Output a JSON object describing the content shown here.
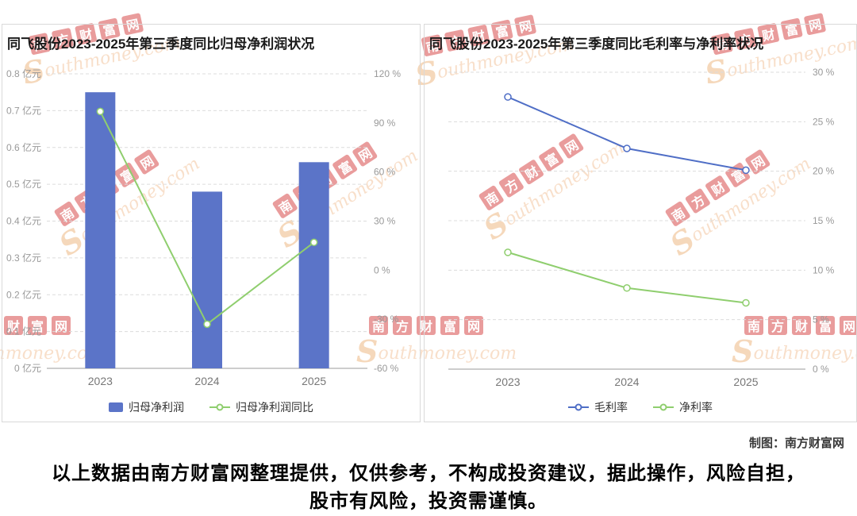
{
  "watermark": {
    "stamp": "南方财富网",
    "script": "Southmoney.com"
  },
  "credit": "制图：南方财富网",
  "disclaimer": "以上数据由南方财富网整理提供，仅供参考，不构成投资建议，据此操作，风险自担，股市有风险，投资需谨慎。",
  "chart_data": [
    {
      "type": "bar",
      "title": "同飞股份2023-2025年第三季度同比归母净利润状况",
      "categories": [
        "2023",
        "2024",
        "2025"
      ],
      "series": [
        {
          "name": "归母净利润",
          "type": "bar",
          "axis": "left",
          "unit": "亿元",
          "values": [
            0.75,
            0.48,
            0.56
          ],
          "color": "#5b74c8"
        },
        {
          "name": "归母净利润同比",
          "type": "line",
          "axis": "right",
          "unit": "%",
          "values": [
            97,
            -33,
            17
          ],
          "color": "#8fce6e"
        }
      ],
      "left_axis": {
        "min": 0,
        "max": 0.8,
        "unit": "亿元",
        "ticks": [
          "0 亿元",
          "0.1 亿元",
          "0.2 亿元",
          "0.3 亿元",
          "0.4 亿元",
          "0.5 亿元",
          "0.6 亿元",
          "0.7 亿元",
          "0.8 亿元"
        ]
      },
      "right_axis": {
        "min": -60,
        "max": 120,
        "unit": "%",
        "ticks": [
          "-60 %",
          "-30 %",
          "0 %",
          "30 %",
          "60 %",
          "90 %",
          "120 %"
        ]
      },
      "grid": "dashed-horizontal",
      "legend_position": "bottom"
    },
    {
      "type": "line",
      "title": "同飞股份2023-2025年第三季度同比毛利率与净利率状况",
      "categories": [
        "2023",
        "2024",
        "2025"
      ],
      "series": [
        {
          "name": "毛利率",
          "type": "line",
          "unit": "%",
          "values": [
            27.5,
            22.3,
            20.1
          ],
          "color": "#4f6ec6"
        },
        {
          "name": "净利率",
          "type": "line",
          "unit": "%",
          "values": [
            11.8,
            8.2,
            6.7
          ],
          "color": "#8fce6e"
        }
      ],
      "y_axis": {
        "min": 0,
        "max": 30,
        "unit": "%",
        "ticks": [
          "0 %",
          "5 %",
          "10 %",
          "15 %",
          "20 %",
          "25 %",
          "30 %"
        ]
      },
      "grid": "dashed-horizontal",
      "legend_position": "bottom"
    }
  ]
}
